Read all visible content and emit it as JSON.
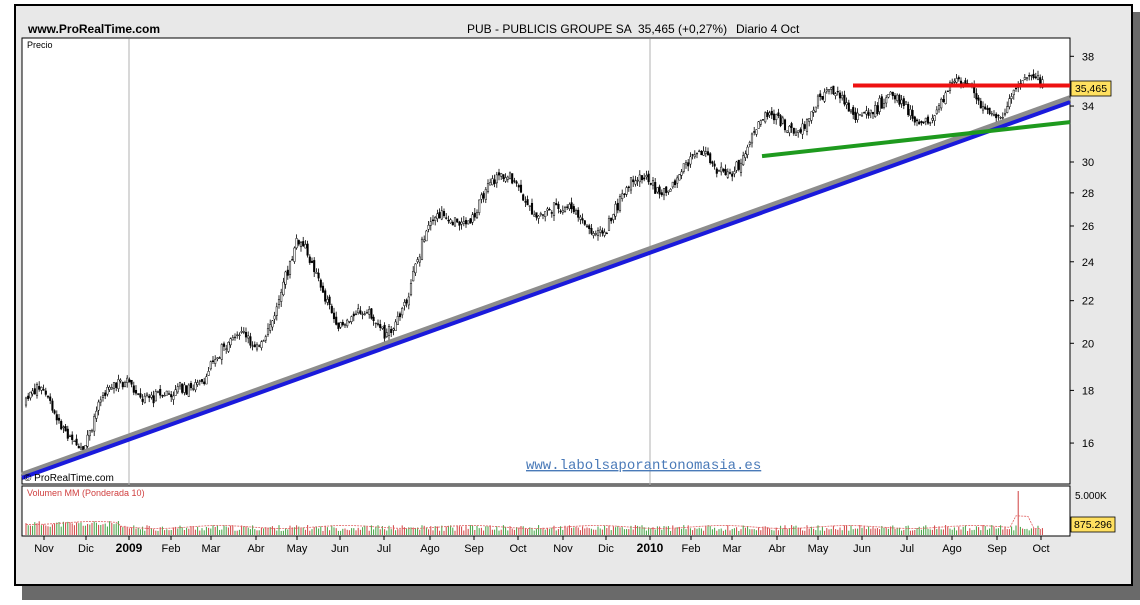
{
  "header": {
    "site": "www.ProRealTime.com",
    "title": "PUB - PUBLICIS GROUPE SA",
    "quote": "35,465 (+0,27%)",
    "period": "Diario  4 Oct"
  },
  "price_panel": {
    "label": "Precio",
    "watermark": "© ProRealTime.com",
    "site_link": "www.labolsaporantonomasia.es",
    "last_price_label": "35,465"
  },
  "volume_panel": {
    "label": "Volumen MM (Ponderada 10)",
    "scale_label": "5.000K",
    "last_value_label": "875.296"
  },
  "colors": {
    "frame": "#000000",
    "panel_bg": "#ffffff",
    "outer_bg": "#e8e8e8",
    "candle_up": "#ffffff",
    "candle_down": "#000000",
    "support_blue": "#1a1adc",
    "support_gray": "#8c8c8c",
    "resistance_red": "#ee1111",
    "trend_green": "#1e9a1e",
    "volume_up": "#d04040",
    "volume_down": "#40a040",
    "highlight": "#ffe060",
    "link": "#4a7ab8"
  },
  "chart_data": {
    "type": "candlestick",
    "title": "PUB - PUBLICIS GROUPE SA",
    "ylabel": "Precio",
    "y_scale": "log",
    "ylim": [
      14.6,
      39.5
    ],
    "y_ticks": [
      16,
      18,
      20,
      22,
      24,
      26,
      28,
      30,
      34,
      38
    ],
    "x_tick_labels": [
      "Nov",
      "Dic",
      "2009",
      "Feb",
      "Mar",
      "Abr",
      "May",
      "Jun",
      "Jul",
      "Ago",
      "Sep",
      "Oct",
      "Nov",
      "Dic",
      "2010",
      "Feb",
      "Mar",
      "Abr",
      "May",
      "Jun",
      "Jul",
      "Ago",
      "Sep",
      "Oct"
    ],
    "grid": {
      "vertical_at": [
        "2009",
        "2010"
      ]
    },
    "price_path": {
      "description_months": [
        "2008-11",
        "2008-12",
        "2009-01",
        "2009-02",
        "2009-03",
        "2009-04",
        "2009-05",
        "2009-06",
        "2009-07",
        "2009-08",
        "2009-09",
        "2009-10",
        "2009-11",
        "2009-12",
        "2010-01",
        "2010-02",
        "2010-03",
        "2010-04",
        "2010-05",
        "2010-06",
        "2010-07",
        "2010-08",
        "2010-09",
        "2010-10"
      ],
      "close": [
        17.5,
        16.2,
        18.7,
        17.2,
        19.5,
        20.0,
        24.5,
        21.5,
        20.3,
        25.5,
        27.5,
        28.6,
        26.2,
        26.5,
        28.8,
        29.5,
        30.2,
        32.8,
        33.8,
        34.5,
        33.2,
        35.0,
        34.2,
        35.465
      ]
    },
    "last_price": 35.465,
    "volume": {
      "series_name": "Volumen MM (Ponderada 10)",
      "scale_max_label": "5.000K",
      "last_value": 875296
    },
    "trendlines": [
      {
        "name": "support",
        "color": "blue",
        "from": [
          "2008-11",
          14.8
        ],
        "to": [
          "2010-10",
          34.3
        ]
      },
      {
        "name": "support-shadow",
        "color": "gray",
        "from": [
          "2008-11",
          14.9
        ],
        "to": [
          "2010-10",
          34.6
        ]
      },
      {
        "name": "resistance",
        "color": "red",
        "from": [
          "2010-06",
          35.6
        ],
        "to": [
          "2010-10",
          35.6
        ]
      },
      {
        "name": "uptrend",
        "color": "green",
        "from": [
          "2010-04",
          30.4
        ],
        "to": [
          "2010-10",
          32.8
        ]
      }
    ]
  }
}
